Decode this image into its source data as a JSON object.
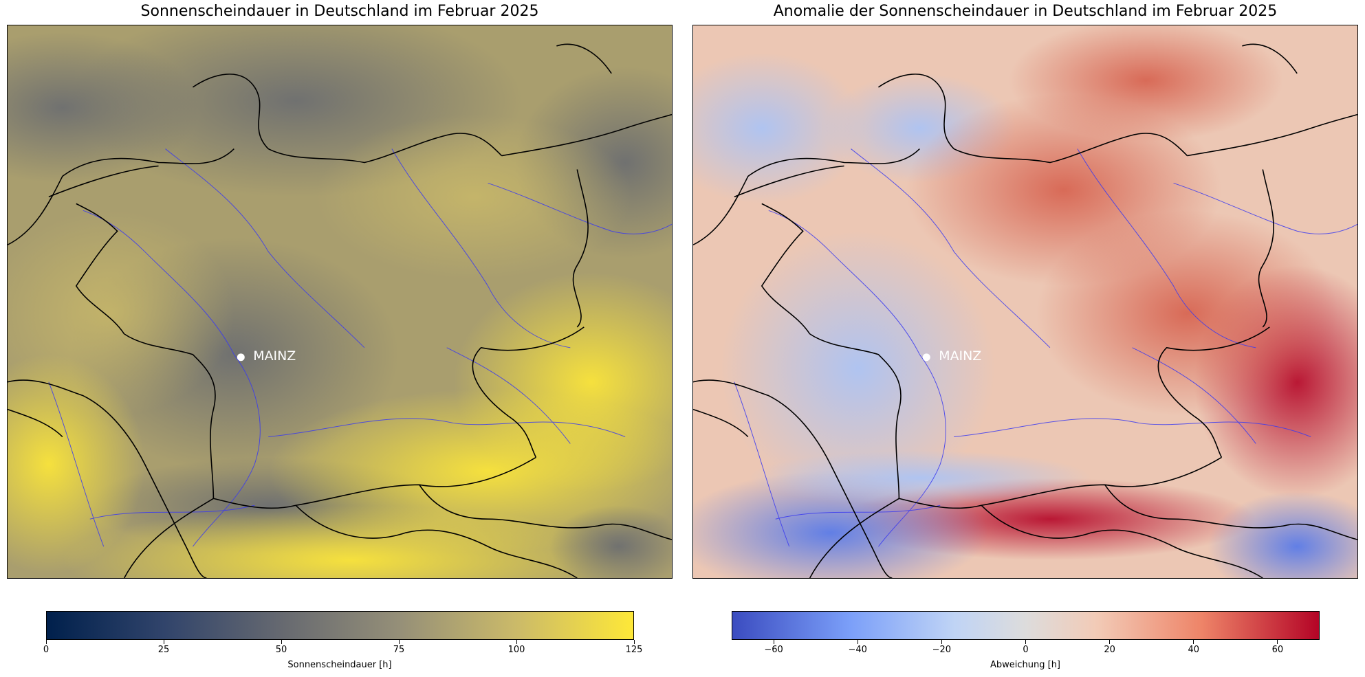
{
  "panels": [
    {
      "title": "Sonnenscheindauer in Deutschland im Februar 2025",
      "city_label": "MAINZ",
      "colorbar": {
        "label": "Sonnenscheindauer [h]",
        "range": [
          0,
          125
        ],
        "ticks": [
          "0",
          "25",
          "50",
          "75",
          "100",
          "125"
        ],
        "tick_values": [
          0,
          25,
          50,
          75,
          100,
          125
        ],
        "colors": [
          "#00204c",
          "#31446b",
          "#666970",
          "#958f78",
          "#cbba69",
          "#fee838"
        ]
      }
    },
    {
      "title": "Anomalie der Sonnenscheindauer in Deutschland im Februar 2025",
      "city_label": "MAINZ",
      "colorbar": {
        "label": "Abweichung [h]",
        "range": [
          -70,
          70
        ],
        "ticks": [
          "−60",
          "−40",
          "−20",
          "0",
          "20",
          "40",
          "60"
        ],
        "tick_values": [
          -60,
          -40,
          -20,
          0,
          20,
          40,
          60
        ],
        "colors": [
          "#3b4cc0",
          "#7b9ff9",
          "#c0d4f5",
          "#dddcdc",
          "#f2cbb7",
          "#ee8468",
          "#b40426"
        ]
      }
    }
  ]
}
